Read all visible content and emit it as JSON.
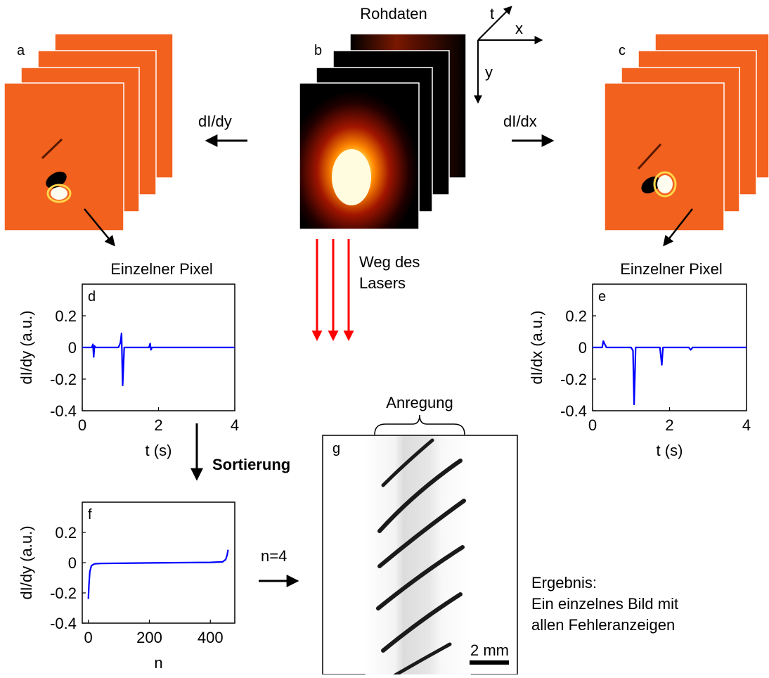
{
  "stacks": {
    "a": {
      "letter": "a"
    },
    "b": {
      "letter": "b",
      "title": "Rohdaten"
    },
    "c": {
      "letter": "c"
    }
  },
  "axes_3d": {
    "t": "t",
    "x": "x",
    "y": "y"
  },
  "arrow_labels": {
    "left": "dI/dy",
    "right": "dI/dx",
    "laser": [
      "Weg des",
      "Lasers"
    ],
    "sort": "Sortierung",
    "n4": "n=4"
  },
  "pixel_titles": {
    "left": "Einzelner Pixel",
    "right": "Einzelner Pixel"
  },
  "result": {
    "lines": [
      "Ergebnis:",
      "Ein einzelnes Bild mit",
      "allen Fehleranzeigen"
    ]
  },
  "image_g": {
    "letter": "g",
    "brace_label": "Anregung",
    "scale_bar": "2 mm"
  },
  "colors": {
    "trace": "#0000ff",
    "laser": "#ff0000",
    "orange": "#f2611e"
  },
  "chart_data": [
    {
      "id": "d",
      "letter": "d",
      "type": "line",
      "xlabel": "t (s)",
      "ylabel": "dI/dy (a.u.)",
      "xlim": [
        0,
        4
      ],
      "ylim": [
        -0.4,
        0.4
      ],
      "xticks": [
        "0",
        "2",
        "4"
      ],
      "yticks": [
        "-0.4",
        "-0.2",
        "0",
        "0.2"
      ],
      "ytick_values": [
        -0.4,
        -0.2,
        0,
        0.2
      ],
      "xtick_values": [
        0,
        2,
        4
      ],
      "series": [
        {
          "x": [
            0,
            0.25,
            0.28,
            0.3,
            0.32,
            0.35,
            0.95,
            1.0,
            1.03,
            1.06,
            1.1,
            1.75,
            1.78,
            1.8,
            1.83,
            4
          ],
          "y": [
            0,
            0,
            0.02,
            -0.06,
            0.01,
            0,
            0,
            0.03,
            0.09,
            -0.24,
            0,
            0,
            0.025,
            -0.015,
            0,
            0
          ]
        }
      ]
    },
    {
      "id": "e",
      "letter": "e",
      "type": "line",
      "xlabel": "t (s)",
      "ylabel": "dI/dx (a.u.)",
      "xlim": [
        0,
        4
      ],
      "ylim": [
        -0.4,
        0.4
      ],
      "xticks": [
        "0",
        "2",
        "4"
      ],
      "yticks": [
        "-0.4",
        "-0.2",
        "0",
        "0.2"
      ],
      "ytick_values": [
        -0.4,
        -0.2,
        0,
        0.2
      ],
      "xtick_values": [
        0,
        2,
        4
      ],
      "series": [
        {
          "x": [
            0,
            0.25,
            0.28,
            0.32,
            0.36,
            1.0,
            1.05,
            1.08,
            1.12,
            1.75,
            1.8,
            1.83,
            2.5,
            2.55,
            2.6,
            4
          ],
          "y": [
            0,
            0,
            0.04,
            0.02,
            0,
            0,
            -0.02,
            -0.36,
            0,
            0,
            -0.11,
            0,
            0,
            -0.015,
            0,
            0
          ]
        }
      ]
    },
    {
      "id": "f",
      "letter": "f",
      "type": "line",
      "xlabel": "n",
      "ylabel": "dI/dy (a.u.)",
      "xlim": [
        -20,
        480
      ],
      "ylim": [
        -0.4,
        0.4
      ],
      "xticks": [
        "0",
        "200",
        "400"
      ],
      "yticks": [
        "-0.4",
        "-0.2",
        "0",
        "0.2"
      ],
      "ytick_values": [
        -0.4,
        -0.2,
        0,
        0.2
      ],
      "xtick_values": [
        0,
        200,
        400
      ],
      "series": [
        {
          "x": [
            0,
            2,
            5,
            10,
            20,
            40,
            100,
            200,
            300,
            400,
            440,
            450,
            455,
            458
          ],
          "y": [
            -0.24,
            -0.15,
            -0.06,
            -0.02,
            -0.008,
            -0.005,
            -0.004,
            -0.002,
            0,
            0.002,
            0.005,
            0.02,
            0.05,
            0.085
          ]
        }
      ]
    }
  ]
}
